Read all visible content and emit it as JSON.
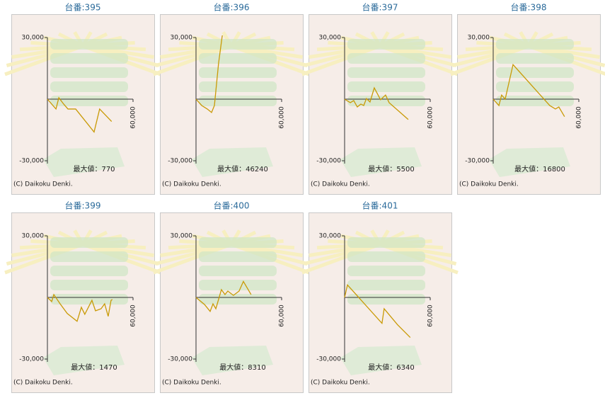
{
  "chart_data": [
    {
      "type": "line",
      "title": "台番:395",
      "annotation": "最大値：770",
      "copyright": "(C) Daikoku Denki.",
      "color": "#c99a06",
      "xlim": [
        0,
        60000
      ],
      "ylim": [
        -30000,
        30000
      ],
      "xticks": [
        {
          "value": 60000,
          "label": "60,000"
        }
      ],
      "yticks": [
        {
          "value": 30000,
          "label": "30,000"
        },
        {
          "value": -30000,
          "label": "-30,000"
        }
      ],
      "x": [
        0,
        6000,
        8000,
        11400,
        14400,
        19800,
        32700,
        36600,
        45000
      ],
      "values": [
        0,
        -4800,
        700,
        -2400,
        -4800,
        -4800,
        -16000,
        -4800,
        -10900
      ]
    },
    {
      "type": "line",
      "title": "台番:396",
      "annotation": "最大値：46240",
      "copyright": "(C) Daikoku Denki.",
      "color": "#c99a06",
      "xlim": [
        0,
        60000
      ],
      "ylim": [
        -30000,
        30000
      ],
      "xticks": [
        {
          "value": 60000,
          "label": "60,000"
        }
      ],
      "yticks": [
        {
          "value": 30000,
          "label": "30,000"
        },
        {
          "value": -30000,
          "label": "-30,000"
        }
      ],
      "x": [
        0,
        4000,
        7900,
        10900,
        12900,
        15800,
        18300,
        19000
      ],
      "values": [
        0,
        -3100,
        -4800,
        -6500,
        -3100,
        17400,
        30400,
        33000
      ]
    },
    {
      "type": "line",
      "title": "台番:397",
      "annotation": "最大値：5500",
      "copyright": "(C) Daikoku Denki.",
      "color": "#c99a06",
      "xlim": [
        0,
        60000
      ],
      "ylim": [
        -30000,
        30000
      ],
      "xticks": [
        {
          "value": 60000,
          "label": "60,000"
        }
      ],
      "yticks": [
        {
          "value": 30000,
          "label": "30,000"
        },
        {
          "value": -30000,
          "label": "-30,000"
        }
      ],
      "x": [
        0,
        4000,
        6400,
        8900,
        11400,
        13400,
        15300,
        17800,
        20800,
        25200,
        28700,
        31200,
        44600
      ],
      "values": [
        0,
        -1700,
        -700,
        -3800,
        -2400,
        -3100,
        300,
        -1400,
        5500,
        -300,
        2000,
        -1700,
        -9900
      ]
    },
    {
      "type": "line",
      "title": "台番:398",
      "annotation": "最大値：16800",
      "copyright": "(C) Daikoku Denki.",
      "color": "#c99a06",
      "xlim": [
        0,
        60000
      ],
      "ylim": [
        -30000,
        30000
      ],
      "xticks": [
        {
          "value": 60000,
          "label": "60,000"
        }
      ],
      "yticks": [
        {
          "value": 30000,
          "label": "30,000"
        },
        {
          "value": -30000,
          "label": "-30,000"
        }
      ],
      "x": [
        0,
        4000,
        5900,
        8400,
        13900,
        39600,
        43600,
        46000,
        50000
      ],
      "values": [
        0,
        -3100,
        2000,
        0,
        16800,
        -3100,
        -4800,
        -3800,
        -8500
      ]
    },
    {
      "type": "line",
      "title": "台番:399",
      "annotation": "最大値：1470",
      "copyright": "(C) Daikoku Denki.",
      "color": "#c99a06",
      "xlim": [
        0,
        60000
      ],
      "ylim": [
        -30000,
        30000
      ],
      "xticks": [
        {
          "value": 60000,
          "label": "60,000"
        }
      ],
      "yticks": [
        {
          "value": 30000,
          "label": "30,000"
        },
        {
          "value": -30000,
          "label": "-30,000"
        }
      ],
      "x": [
        0,
        3000,
        4500,
        8900,
        13900,
        20800,
        23800,
        26200,
        31200,
        33700,
        37600,
        40100,
        42600,
        44600,
        45500
      ],
      "values": [
        0,
        -2000,
        1400,
        -3100,
        -7800,
        -11600,
        -4800,
        -8200,
        -1400,
        -6500,
        -5500,
        -3100,
        -9200,
        -1400,
        -1000
      ]
    },
    {
      "type": "line",
      "title": "台番:400",
      "annotation": "最大値：8310",
      "copyright": "(C) Daikoku Denki.",
      "color": "#c99a06",
      "xlim": [
        0,
        60000
      ],
      "ylim": [
        -30000,
        30000
      ],
      "xticks": [
        {
          "value": 60000,
          "label": "60,000"
        }
      ],
      "yticks": [
        {
          "value": 30000,
          "label": "30,000"
        },
        {
          "value": -30000,
          "label": "-30,000"
        }
      ],
      "x": [
        0,
        5900,
        9900,
        11900,
        13900,
        17800,
        20300,
        22300,
        26200,
        30200,
        33200,
        38600
      ],
      "values": [
        0,
        -3400,
        -6800,
        -3100,
        -5500,
        3800,
        1400,
        3100,
        1000,
        3100,
        7800,
        1400
      ]
    },
    {
      "type": "line",
      "title": "台番:401",
      "annotation": "最大値：6340",
      "copyright": "(C) Daikoku Denki.",
      "color": "#c99a06",
      "xlim": [
        0,
        60000
      ],
      "ylim": [
        -30000,
        30000
      ],
      "xticks": [
        {
          "value": 60000,
          "label": "60,000"
        }
      ],
      "yticks": [
        {
          "value": 30000,
          "label": "30,000"
        },
        {
          "value": -30000,
          "label": "-30,000"
        }
      ],
      "x": [
        0,
        2000,
        26200,
        27700,
        37100,
        46000
      ],
      "values": [
        0,
        6100,
        -12600,
        -5500,
        -13300,
        -19500
      ]
    }
  ]
}
